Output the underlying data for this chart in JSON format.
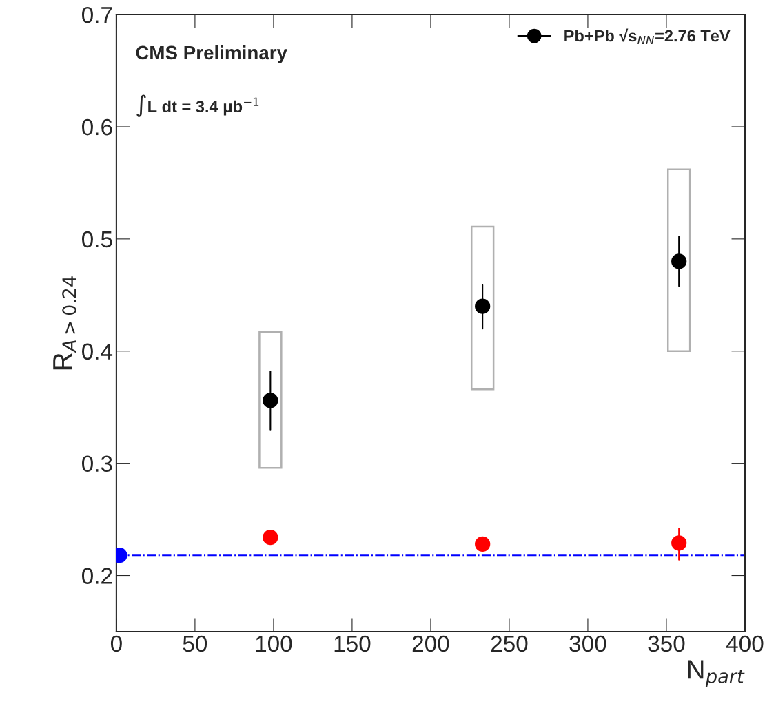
{
  "chart_data": {
    "type": "scatter",
    "xlabel": "N$_{part}$",
    "ylabel": "R$_{A>0.24}$",
    "annotations": [
      "CMS Preliminary",
      "∫L dt = 3.4 μb$^{−1}$"
    ],
    "xlim": [
      0,
      400
    ],
    "xticks": [
      0,
      50,
      100,
      150,
      200,
      250,
      300,
      350,
      400
    ],
    "ylim": [
      0.15,
      0.7
    ],
    "yticks": [
      0.2,
      0.3,
      0.4,
      0.5,
      0.6,
      0.7
    ],
    "legend": "top right",
    "marker": "circle",
    "grid": false,
    "ref_lines": [
      {
        "axis": "y",
        "value": 0.218,
        "color": "#0000ff",
        "line_style": "dashdot"
      }
    ],
    "series": [
      {
        "type": "bar",
        "color": "#b0b0b0",
        "x": [
          98,
          233,
          358
        ],
        "base": [
          0.296,
          0.366,
          0.4
        ],
        "values": [
          0.121,
          0.145,
          0.162
        ]
      },
      {
        "name": "Pb+Pb √s$_{NN}$=2.76 TeV",
        "color": "#000000",
        "x": [
          98,
          233,
          358
        ],
        "values": [
          0.356,
          0.44,
          0.48
        ],
        "errors": [
          [
            0.33,
            0.382
          ],
          [
            0.42,
            0.459
          ],
          [
            0.458,
            0.502
          ]
        ]
      },
      {
        "color": "#0000ff",
        "x": [
          2
        ],
        "values": [
          0.218
        ]
      },
      {
        "color": "#ff0000",
        "x": [
          98,
          233,
          358
        ],
        "values": [
          0.234,
          0.228,
          0.229
        ],
        "errors": [
          null,
          null,
          [
            0.214,
            0.242
          ]
        ]
      }
    ]
  }
}
